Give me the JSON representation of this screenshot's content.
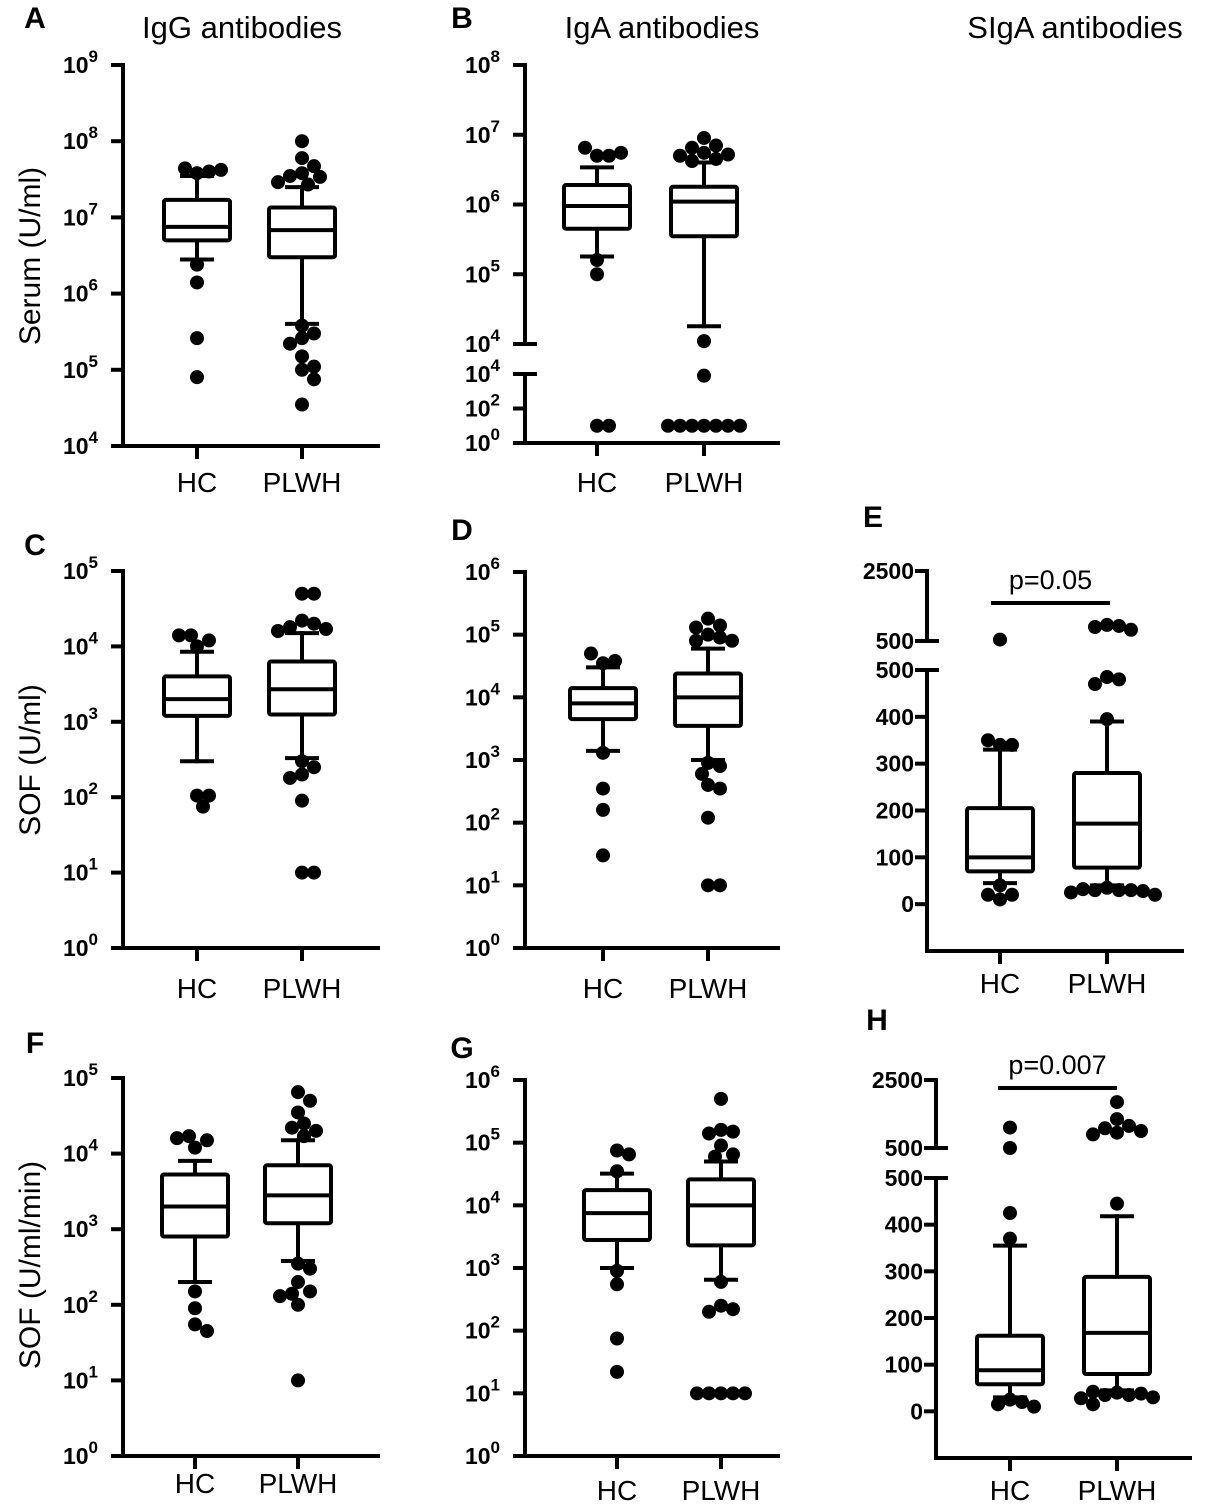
{
  "colors": {
    "ink": "#000000",
    "box_fill": "#ffffff"
  },
  "column_titles": [
    "IgG antibodies",
    "IgA antibodies",
    "SIgA antibodies"
  ],
  "chart_data": [
    {
      "panel": "A",
      "type": "box",
      "ylabel": "Serum (U/ml)",
      "categories": [
        "HC",
        "PLWH"
      ],
      "yaxis": [
        {
          "scale": "log",
          "min": 10000.0,
          "max": 1000000000.0,
          "ticks": [
            {
              "v": 10000.0,
              "label": "10⁴"
            },
            {
              "v": 100000.0,
              "label": "10⁵"
            },
            {
              "v": 1000000.0,
              "label": "10⁶"
            },
            {
              "v": 10000000.0,
              "label": "10⁷"
            },
            {
              "v": 100000000.0,
              "label": "10⁸"
            },
            {
              "v": 1000000000.0,
              "label": "10⁹"
            }
          ]
        }
      ],
      "groups": [
        {
          "name": "HC",
          "whisker_low": 2800000.0,
          "q1": 5000000.0,
          "median": 7500000.0,
          "q3": 17000000.0,
          "whisker_high": 35000000.0,
          "outliers": [
            38000000.0,
            40000000.0,
            44000000.0,
            42000000.0,
            2400000.0,
            1400000.0,
            260000.0,
            80000.0
          ]
        },
        {
          "name": "PLWH",
          "whisker_low": 400000.0,
          "q1": 3000000.0,
          "median": 6800000.0,
          "q3": 13500000.0,
          "whisker_high": 25000000.0,
          "outliers": [
            100000000.0,
            60000000.0,
            47000000.0,
            38000000.0,
            35000000.0,
            34000000.0,
            29000000.0,
            27000000.0,
            380000.0,
            300000.0,
            260000.0,
            220000.0,
            150000.0,
            110000.0,
            100000.0,
            75000.0,
            35000.0
          ]
        }
      ]
    },
    {
      "panel": "B",
      "type": "box",
      "ylabel": "",
      "categories": [
        "HC",
        "PLWH"
      ],
      "yaxis": [
        {
          "scale": "log",
          "min": 10000.0,
          "max": 100000000.0,
          "ticks": [
            {
              "v": 10000.0,
              "label": "10⁴"
            },
            {
              "v": 100000.0,
              "label": "10⁵"
            },
            {
              "v": 1000000.0,
              "label": "10⁶"
            },
            {
              "v": 10000000.0,
              "label": "10⁷"
            },
            {
              "v": 100000000.0,
              "label": "10⁸"
            }
          ]
        },
        {
          "scale": "log",
          "min": 1,
          "max": 10000.0,
          "ticks": [
            {
              "v": 1,
              "label": "10⁰"
            },
            {
              "v": 100,
              "label": "10²"
            },
            {
              "v": 10000.0,
              "label": "10⁴"
            }
          ]
        }
      ],
      "groups": [
        {
          "name": "HC",
          "whisker_low": 180000.0,
          "q1": 450000.0,
          "median": 950000.0,
          "q3": 1900000.0,
          "whisker_high": 3400000.0,
          "outliers": [
            5000000.0,
            5000000.0,
            6500000.0,
            5500000.0,
            160000.0,
            100000.0,
            10,
            10
          ]
        },
        {
          "name": "PLWH",
          "whisker_low": 18000.0,
          "q1": 350000.0,
          "median": 1100000.0,
          "q3": 1800000.0,
          "whisker_high": 4000000.0,
          "outliers": [
            9000000.0,
            7000000.0,
            6500000.0,
            5500000.0,
            5200000.0,
            5000000.0,
            4500000.0,
            4200000.0,
            11000.0,
            8000,
            10,
            10,
            10,
            10,
            10,
            10,
            10
          ]
        }
      ]
    },
    {
      "panel": "C",
      "type": "box",
      "ylabel": "SOF (U/ml)",
      "categories": [
        "HC",
        "PLWH"
      ],
      "yaxis": [
        {
          "scale": "log",
          "min": 1,
          "max": 100000.0,
          "ticks": [
            {
              "v": 1,
              "label": "10⁰"
            },
            {
              "v": 10,
              "label": "10¹"
            },
            {
              "v": 100,
              "label": "10²"
            },
            {
              "v": 1000,
              "label": "10³"
            },
            {
              "v": 10000.0,
              "label": "10⁴"
            },
            {
              "v": 100000.0,
              "label": "10⁵"
            }
          ]
        }
      ],
      "groups": [
        {
          "name": "HC",
          "whisker_low": 300,
          "q1": 1200,
          "median": 2000,
          "q3": 4000,
          "whisker_high": 8500,
          "outliers": [
            10000.0,
            12000.0,
            14000.0,
            14000.0,
            105,
            105,
            75
          ]
        },
        {
          "name": "PLWH",
          "whisker_low": 330,
          "q1": 1250,
          "median": 2700,
          "q3": 6300,
          "whisker_high": 15000.0,
          "outliers": [
            50000.0,
            50000.0,
            22000.0,
            20000.0,
            18000.0,
            17000.0,
            16000.0,
            300,
            250,
            200,
            180,
            90,
            10,
            10
          ]
        }
      ]
    },
    {
      "panel": "D",
      "type": "box",
      "ylabel": "",
      "categories": [
        "HC",
        "PLWH"
      ],
      "yaxis": [
        {
          "scale": "log",
          "min": 1,
          "max": 1000000.0,
          "ticks": [
            {
              "v": 1,
              "label": "10⁰"
            },
            {
              "v": 10,
              "label": "10¹"
            },
            {
              "v": 100,
              "label": "10²"
            },
            {
              "v": 1000,
              "label": "10³"
            },
            {
              "v": 10000.0,
              "label": "10⁴"
            },
            {
              "v": 100000.0,
              "label": "10⁵"
            },
            {
              "v": 1000000.0,
              "label": "10⁶"
            }
          ]
        }
      ],
      "groups": [
        {
          "name": "HC",
          "whisker_low": 1400,
          "q1": 4500,
          "median": 8000,
          "q3": 14000.0,
          "whisker_high": 30000.0,
          "outliers": [
            35000.0,
            38000.0,
            50000.0,
            1300,
            350,
            160,
            30
          ]
        },
        {
          "name": "PLWH",
          "whisker_low": 1000,
          "q1": 3500,
          "median": 10000.0,
          "q3": 24000.0,
          "whisker_high": 60000.0,
          "outliers": [
            180000.0,
            140000.0,
            130000.0,
            100000.0,
            90000.0,
            80000.0,
            80000.0,
            900,
            800,
            600,
            400,
            350,
            120,
            10,
            10
          ]
        }
      ]
    },
    {
      "panel": "E",
      "type": "box",
      "ylabel": "",
      "categories": [
        "HC",
        "PLWH"
      ],
      "annotation": "p=0.05",
      "yaxis": [
        {
          "scale": "linear",
          "min": 500,
          "max": 2500,
          "ticks": [
            {
              "v": 500,
              "label": "500"
            },
            {
              "v": 2500,
              "label": "2500"
            }
          ]
        },
        {
          "scale": "linear",
          "min": -100,
          "max": 500,
          "ticks": [
            {
              "v": 0,
              "label": "0"
            },
            {
              "v": 100,
              "label": "100"
            },
            {
              "v": 200,
              "label": "200"
            },
            {
              "v": 300,
              "label": "300"
            },
            {
              "v": 400,
              "label": "400"
            },
            {
              "v": 500,
              "label": "500"
            }
          ]
        }
      ],
      "groups": [
        {
          "name": "HC",
          "whisker_low": 45,
          "q1": 70,
          "median": 100,
          "q3": 205,
          "whisker_high": 330,
          "outliers": [
            540,
            340,
            340,
            350,
            40,
            20,
            20,
            10
          ]
        },
        {
          "name": "PLWH",
          "whisker_low": 40,
          "q1": 78,
          "median": 172,
          "q3": 280,
          "whisker_high": 390,
          "outliers": [
            960,
            930,
            900,
            820,
            485,
            480,
            470,
            395,
            35,
            30,
            30,
            30,
            32,
            28,
            25,
            20
          ]
        }
      ]
    },
    {
      "panel": "F",
      "type": "box",
      "ylabel": "SOF (U/ml/min)",
      "categories": [
        "HC",
        "PLWH"
      ],
      "yaxis": [
        {
          "scale": "log",
          "min": 1,
          "max": 100000.0,
          "ticks": [
            {
              "v": 1,
              "label": "10⁰"
            },
            {
              "v": 10,
              "label": "10¹"
            },
            {
              "v": 100,
              "label": "10²"
            },
            {
              "v": 1000,
              "label": "10³"
            },
            {
              "v": 10000.0,
              "label": "10⁴"
            },
            {
              "v": 100000.0,
              "label": "10⁵"
            }
          ]
        }
      ],
      "groups": [
        {
          "name": "HC",
          "whisker_low": 200,
          "q1": 800,
          "median": 2000,
          "q3": 5300,
          "whisker_high": 8000,
          "outliers": [
            12000.0,
            15000.0,
            17000.0,
            16000.0,
            150,
            90,
            55,
            45
          ]
        },
        {
          "name": "PLWH",
          "whisker_low": 380,
          "q1": 1200,
          "median": 2800,
          "q3": 7000,
          "whisker_high": 15000.0,
          "outliers": [
            65000.0,
            50000.0,
            35000.0,
            25000.0,
            22000.0,
            20000.0,
            17000.0,
            350,
            300,
            200,
            150,
            140,
            130,
            100,
            10
          ]
        }
      ]
    },
    {
      "panel": "G",
      "type": "box",
      "ylabel": "",
      "categories": [
        "HC",
        "PLWH"
      ],
      "yaxis": [
        {
          "scale": "log",
          "min": 1,
          "max": 1000000.0,
          "ticks": [
            {
              "v": 1,
              "label": "10⁰"
            },
            {
              "v": 10,
              "label": "10¹"
            },
            {
              "v": 100,
              "label": "10²"
            },
            {
              "v": 1000,
              "label": "10³"
            },
            {
              "v": 10000.0,
              "label": "10⁴"
            },
            {
              "v": 100000.0,
              "label": "10⁵"
            },
            {
              "v": 1000000.0,
              "label": "10⁶"
            }
          ]
        }
      ],
      "groups": [
        {
          "name": "HC",
          "whisker_low": 1000,
          "q1": 2800,
          "median": 7500,
          "q3": 17500.0,
          "whisker_high": 32000.0,
          "outliers": [
            75000.0,
            65000.0,
            35000.0,
            900,
            550,
            75,
            22
          ]
        },
        {
          "name": "PLWH",
          "whisker_low": 650,
          "q1": 2300,
          "median": 10000.0,
          "q3": 26000.0,
          "whisker_high": 50000.0,
          "outliers": [
            500000.0,
            160000.0,
            150000.0,
            140000.0,
            90000.0,
            65000.0,
            60000.0,
            600,
            250,
            220,
            200,
            10,
            10,
            10,
            10,
            10
          ]
        }
      ]
    },
    {
      "panel": "H",
      "type": "box",
      "ylabel": "",
      "categories": [
        "HC",
        "PLWH"
      ],
      "annotation": "p=0.007",
      "yaxis": [
        {
          "scale": "linear",
          "min": 500,
          "max": 2500,
          "ticks": [
            {
              "v": 500,
              "label": "500"
            },
            {
              "v": 2500,
              "label": "2500"
            }
          ]
        },
        {
          "scale": "linear",
          "min": -100,
          "max": 500,
          "ticks": [
            {
              "v": 0,
              "label": "0"
            },
            {
              "v": 100,
              "label": "100"
            },
            {
              "v": 200,
              "label": "200"
            },
            {
              "v": 300,
              "label": "300"
            },
            {
              "v": 400,
              "label": "400"
            },
            {
              "v": 500,
              "label": "500"
            }
          ]
        }
      ],
      "groups": [
        {
          "name": "HC",
          "whisker_low": 30,
          "q1": 58,
          "median": 88,
          "q3": 162,
          "whisker_high": 355,
          "outliers": [
            1100,
            500,
            425,
            370,
            25,
            20,
            15,
            10
          ]
        },
        {
          "name": "PLWH",
          "whisker_low": 45,
          "q1": 80,
          "median": 168,
          "q3": 288,
          "whisker_high": 418,
          "outliers": [
            1850,
            1350,
            1150,
            1080,
            1000,
            950,
            900,
            445,
            40,
            35,
            35,
            38,
            42,
            30,
            28,
            15
          ]
        }
      ]
    }
  ]
}
